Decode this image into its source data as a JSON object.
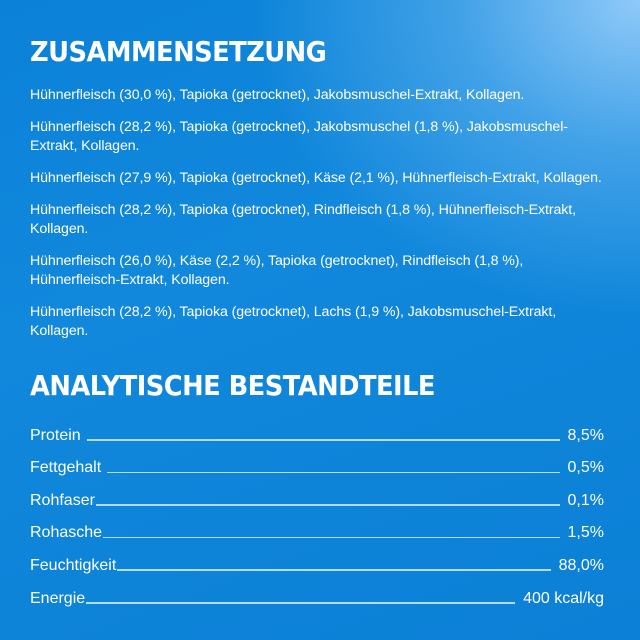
{
  "background": {
    "primary_blue": "#0b82d8",
    "highlight_blue": "#96cdfa",
    "text_color": "#ffffff"
  },
  "composition": {
    "title": "ZUSAMMENSETZUNG",
    "items": [
      "Hühnerfleisch (30,0 %), Tapioka (getrocknet), Jakobsmuschel-Extrakt, Kollagen.",
      "Hühnerfleisch (28,2 %), Tapioka (getrocknet), Jakobsmuschel (1,8 %), Jakobsmuschel-Extrakt, Kollagen.",
      "Hühnerfleisch (27,9 %), Tapioka (getrocknet), Käse (2,1 %), Hühnerfleisch-Extrakt, Kollagen.",
      "Hühnerfleisch (28,2 %), Tapioka (getrocknet), Rindfleisch (1,8 %), Hühnerfleisch-Extrakt, Kollagen.",
      "Hühnerfleisch (26,0 %), Käse (2,2 %), Tapioka (getrocknet), Rindfleisch (1,8 %), Hühnerfleisch-Extrakt, Kollagen.",
      "Hühnerfleisch (28,2 %), Tapioka (getrocknet), Lachs (1,9 %), Jakobsmuschel-Extrakt, Kollagen."
    ]
  },
  "analytical": {
    "title": "ANALYTISCHE BESTANDTEILE",
    "rows": [
      {
        "label": "Protein",
        "value": "8,5%"
      },
      {
        "label": "Fettgehalt",
        "value": "0,5%"
      },
      {
        "label": "Rohfaser",
        "value": "0,1%"
      },
      {
        "label": "Rohasche",
        "value": "1,5%"
      },
      {
        "label": "Feuchtigkeit",
        "value": "88,0%"
      },
      {
        "label": "Energie",
        "value": "400 kcal/kg"
      }
    ]
  }
}
